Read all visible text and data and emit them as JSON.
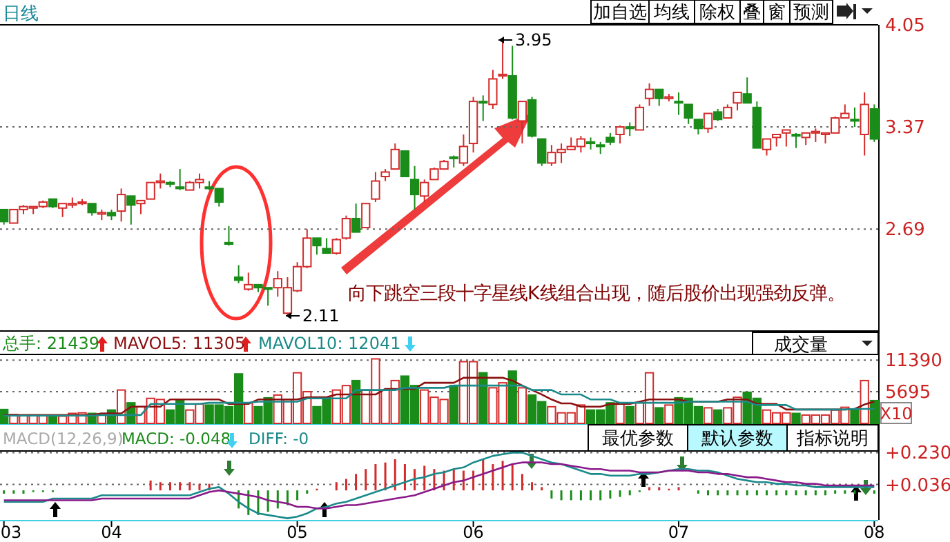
{
  "chart_data": [
    {
      "type": "candlestick",
      "ohlc": [
        [
          2.82,
          2.82,
          2.72,
          2.74
        ],
        [
          2.73,
          2.82,
          2.73,
          2.82
        ],
        [
          2.82,
          2.85,
          2.79,
          2.84
        ],
        [
          2.83,
          2.84,
          2.79,
          2.84
        ],
        [
          2.84,
          2.88,
          2.83,
          2.87
        ],
        [
          2.89,
          2.89,
          2.83,
          2.84
        ],
        [
          2.83,
          2.86,
          2.77,
          2.86
        ],
        [
          2.85,
          2.9,
          2.83,
          2.86
        ],
        [
          2.86,
          2.89,
          2.85,
          2.87
        ],
        [
          2.86,
          2.86,
          2.78,
          2.8
        ],
        [
          2.79,
          2.82,
          2.75,
          2.8
        ],
        [
          2.8,
          2.82,
          2.75,
          2.78
        ],
        [
          2.81,
          2.96,
          2.74,
          2.92
        ],
        [
          2.91,
          2.91,
          2.72,
          2.85
        ],
        [
          2.86,
          2.88,
          2.79,
          2.88
        ],
        [
          2.89,
          3.0,
          2.89,
          3.0
        ],
        [
          3.0,
          3.06,
          2.96,
          3.01
        ],
        [
          3.0,
          3.01,
          2.97,
          2.99
        ],
        [
          2.97,
          3.09,
          2.95,
          2.96
        ],
        [
          2.95,
          3.01,
          2.95,
          3.0
        ],
        [
          3.0,
          3.06,
          2.96,
          3.02
        ],
        [
          2.97,
          3.01,
          2.95,
          2.96
        ],
        [
          2.96,
          2.96,
          2.84,
          2.87
        ],
        [
          2.6,
          2.71,
          2.58,
          2.59
        ],
        [
          2.37,
          2.45,
          2.33,
          2.35
        ],
        [
          2.29,
          2.4,
          2.28,
          2.32
        ],
        [
          2.32,
          2.32,
          2.27,
          2.3
        ],
        [
          2.3,
          2.3,
          2.18,
          2.29
        ],
        [
          2.3,
          2.41,
          2.24,
          2.36
        ],
        [
          2.13,
          2.37,
          2.11,
          2.3
        ],
        [
          2.28,
          2.47,
          2.27,
          2.44
        ],
        [
          2.44,
          2.69,
          2.43,
          2.63
        ],
        [
          2.63,
          2.63,
          2.52,
          2.58
        ],
        [
          2.56,
          2.63,
          2.53,
          2.53
        ],
        [
          2.53,
          2.63,
          2.52,
          2.62
        ],
        [
          2.63,
          2.78,
          2.62,
          2.76
        ],
        [
          2.76,
          2.86,
          2.67,
          2.67
        ],
        [
          2.7,
          2.86,
          2.7,
          2.86
        ],
        [
          2.89,
          3.07,
          2.87,
          3.01
        ],
        [
          3.04,
          3.09,
          3.01,
          3.07
        ],
        [
          3.09,
          3.26,
          3.09,
          3.22
        ],
        [
          3.21,
          3.21,
          3.04,
          3.04
        ],
        [
          3.02,
          3.11,
          2.82,
          2.92
        ],
        [
          2.91,
          3.02,
          2.87,
          3.0
        ],
        [
          3.02,
          3.1,
          3.02,
          3.09
        ],
        [
          3.09,
          3.15,
          3.09,
          3.14
        ],
        [
          3.17,
          3.18,
          3.1,
          3.16
        ],
        [
          3.13,
          3.32,
          3.11,
          3.24
        ],
        [
          3.26,
          3.57,
          3.2,
          3.54
        ],
        [
          3.54,
          3.58,
          3.41,
          3.53
        ],
        [
          3.52,
          3.75,
          3.49,
          3.69
        ],
        [
          3.71,
          3.95,
          3.69,
          3.72
        ],
        [
          3.71,
          3.91,
          3.42,
          3.43
        ],
        [
          3.41,
          3.54,
          3.26,
          3.54
        ],
        [
          3.55,
          3.57,
          3.3,
          3.31
        ],
        [
          3.29,
          3.29,
          3.11,
          3.13
        ],
        [
          3.13,
          3.25,
          3.11,
          3.2
        ],
        [
          3.2,
          3.26,
          3.13,
          3.22
        ],
        [
          3.22,
          3.3,
          3.22,
          3.24
        ],
        [
          3.24,
          3.31,
          3.2,
          3.29
        ],
        [
          3.27,
          3.3,
          3.22,
          3.26
        ],
        [
          3.25,
          3.27,
          3.19,
          3.24
        ],
        [
          3.3,
          3.33,
          3.25,
          3.27
        ],
        [
          3.32,
          3.38,
          3.26,
          3.37
        ],
        [
          3.37,
          3.4,
          3.31,
          3.36
        ],
        [
          3.35,
          3.52,
          3.35,
          3.5
        ],
        [
          3.56,
          3.66,
          3.51,
          3.62
        ],
        [
          3.62,
          3.62,
          3.51,
          3.56
        ],
        [
          3.56,
          3.59,
          3.54,
          3.57
        ],
        [
          3.54,
          3.6,
          3.45,
          3.53
        ],
        [
          3.52,
          3.52,
          3.39,
          3.43
        ],
        [
          3.42,
          3.42,
          3.32,
          3.36
        ],
        [
          3.36,
          3.46,
          3.33,
          3.46
        ],
        [
          3.47,
          3.49,
          3.41,
          3.42
        ],
        [
          3.43,
          3.52,
          3.43,
          3.5
        ],
        [
          3.53,
          3.6,
          3.48,
          3.6
        ],
        [
          3.59,
          3.7,
          3.53,
          3.53
        ],
        [
          3.5,
          3.54,
          3.23,
          3.23
        ],
        [
          3.22,
          3.29,
          3.18,
          3.29
        ],
        [
          3.3,
          3.32,
          3.24,
          3.32
        ],
        [
          3.33,
          3.35,
          3.24,
          3.35
        ],
        [
          3.32,
          3.33,
          3.23,
          3.31
        ],
        [
          3.3,
          3.33,
          3.25,
          3.33
        ],
        [
          3.33,
          3.36,
          3.27,
          3.34
        ],
        [
          3.32,
          3.33,
          3.26,
          3.33
        ],
        [
          3.33,
          3.44,
          3.33,
          3.43
        ],
        [
          3.43,
          3.52,
          3.43,
          3.46
        ],
        [
          3.42,
          3.5,
          3.37,
          3.41
        ],
        [
          3.32,
          3.6,
          3.18,
          3.52
        ],
        [
          3.49,
          3.52,
          3.27,
          3.29
        ]
      ],
      "colors": [
        "#1a8c1a",
        "#d42a2a",
        "#d42a2a",
        "#d42a2a",
        "#d42a2a",
        "#1a8c1a",
        "#d42a2a",
        "#d42a2a",
        "#d42a2a",
        "#1a8c1a",
        "#d42a2a",
        "#1a8c1a",
        "#d42a2a",
        "#1a8c1a",
        "#d42a2a",
        "#d42a2a",
        "#d42a2a",
        "#1a8c1a",
        "#1a8c1a",
        "#d42a2a",
        "#d42a2a",
        "#1a8c1a",
        "#1a8c1a",
        "#1a8c1a",
        "#1a8c1a",
        "#d42a2a",
        "#1a8c1a",
        "#1a8c1a",
        "#d42a2a",
        "#d42a2a",
        "#d42a2a",
        "#d42a2a",
        "#1a8c1a",
        "#1a8c1a",
        "#d42a2a",
        "#d42a2a",
        "#1a8c1a",
        "#d42a2a",
        "#d42a2a",
        "#d42a2a",
        "#d42a2a",
        "#1a8c1a",
        "#1a8c1a",
        "#d42a2a",
        "#d42a2a",
        "#d42a2a",
        "#1a8c1a",
        "#d42a2a",
        "#d42a2a",
        "#1a8c1a",
        "#d42a2a",
        "#d42a2a",
        "#1a8c1a",
        "#d42a2a",
        "#1a8c1a",
        "#1a8c1a",
        "#d42a2a",
        "#d42a2a",
        "#d42a2a",
        "#d42a2a",
        "#1a8c1a",
        "#1a8c1a",
        "#1a8c1a",
        "#d42a2a",
        "#1a8c1a",
        "#d42a2a",
        "#d42a2a",
        "#1a8c1a",
        "#d42a2a",
        "#1a8c1a",
        "#1a8c1a",
        "#1a8c1a",
        "#d42a2a",
        "#1a8c1a",
        "#d42a2a",
        "#d42a2a",
        "#1a8c1a",
        "#1a8c1a",
        "#d42a2a",
        "#d42a2a",
        "#d42a2a",
        "#1a8c1a",
        "#d42a2a",
        "#d42a2a",
        "#d42a2a",
        "#d42a2a",
        "#d42a2a",
        "#1a8c1a",
        "#d42a2a",
        "#1a8c1a"
      ],
      "ylim": [
        2.03,
        4.05
      ],
      "yticks": [
        4.05,
        3.37,
        2.69
      ],
      "grid": "y",
      "tick_labels": "y",
      "annotations": [
        "日线",
        "加自选",
        "均线",
        "除权",
        "叠",
        "窗",
        "预测",
        "向下跳空三段十字星线K线组合出现，随后股价出现强劲反弹。",
        "3.95",
        "2.11"
      ]
    },
    {
      "type": "bar",
      "series": [
        {
          "values": [
            2500,
            1600,
            1400,
            1500,
            1400,
            1400,
            1300,
            1800,
            1900,
            1800,
            1600,
            2400,
            6000,
            3700,
            3000,
            4500,
            4300,
            2400,
            4300,
            2400,
            3500,
            3300,
            3300,
            3000,
            8900,
            3700,
            3000,
            4600,
            5100,
            4300,
            9100,
            5700,
            3000,
            4600,
            6000,
            6800,
            7700,
            6000,
            11600,
            6000,
            7700,
            8500,
            6800,
            6000,
            4700,
            4300,
            6800,
            11100,
            11100,
            9100,
            6400,
            7300,
            9400,
            6400,
            5100,
            3900,
            3000,
            1900,
            1900,
            3300,
            2400,
            2400,
            3700,
            3700,
            3000,
            3700,
            9100,
            2800,
            3300,
            4600,
            4500,
            3000,
            2800,
            2400,
            2800,
            4700,
            5600,
            4500,
            2400,
            1900,
            1900,
            1800,
            1500,
            1500,
            1500,
            2400,
            2900,
            2400,
            7700,
            4100
          ],
          "colors": [
            "#1a8c1a",
            "#d42a2a",
            "#d42a2a",
            "#d42a2a",
            "#d42a2a",
            "#1a8c1a",
            "#d42a2a",
            "#d42a2a",
            "#d42a2a",
            "#1a8c1a",
            "#d42a2a",
            "#1a8c1a",
            "#d42a2a",
            "#1a8c1a",
            "#d42a2a",
            "#d42a2a",
            "#d42a2a",
            "#1a8c1a",
            "#1a8c1a",
            "#d42a2a",
            "#d42a2a",
            "#1a8c1a",
            "#1a8c1a",
            "#1a8c1a",
            "#1a8c1a",
            "#d42a2a",
            "#1a8c1a",
            "#1a8c1a",
            "#d42a2a",
            "#d42a2a",
            "#d42a2a",
            "#d42a2a",
            "#1a8c1a",
            "#1a8c1a",
            "#d42a2a",
            "#d42a2a",
            "#1a8c1a",
            "#d42a2a",
            "#d42a2a",
            "#d42a2a",
            "#d42a2a",
            "#1a8c1a",
            "#1a8c1a",
            "#d42a2a",
            "#d42a2a",
            "#d42a2a",
            "#1a8c1a",
            "#d42a2a",
            "#d42a2a",
            "#1a8c1a",
            "#d42a2a",
            "#d42a2a",
            "#1a8c1a",
            "#d42a2a",
            "#1a8c1a",
            "#1a8c1a",
            "#d42a2a",
            "#d42a2a",
            "#d42a2a",
            "#d42a2a",
            "#1a8c1a",
            "#1a8c1a",
            "#1a8c1a",
            "#d42a2a",
            "#1a8c1a",
            "#d42a2a",
            "#d42a2a",
            "#1a8c1a",
            "#d42a2a",
            "#1a8c1a",
            "#1a8c1a",
            "#1a8c1a",
            "#d42a2a",
            "#1a8c1a",
            "#d42a2a",
            "#d42a2a",
            "#1a8c1a",
            "#1a8c1a",
            "#d42a2a",
            "#d42a2a",
            "#d42a2a",
            "#1a8c1a",
            "#d42a2a",
            "#d42a2a",
            "#d42a2a",
            "#d42a2a",
            "#d42a2a",
            "#1a8c1a",
            "#d42a2a",
            "#1a8c1a"
          ]
        },
        {
          "type": "line",
          "color": "#8b1010",
          "values": [
            1500,
            1500,
            1500,
            1500,
            1500,
            1500,
            1500,
            1500,
            1500,
            1500,
            1800,
            1800,
            1800,
            3000,
            3000,
            3000,
            3000,
            4300,
            4300,
            4300,
            4300,
            4300,
            4300,
            3500,
            3500,
            3500,
            4300,
            4300,
            4300,
            4300,
            4300,
            4700,
            4700,
            4700,
            5200,
            5200,
            5200,
            5200,
            5200,
            6200,
            6200,
            6200,
            6200,
            7300,
            7300,
            7300,
            7300,
            8200,
            8200,
            8200,
            8200,
            8200,
            7700,
            6800,
            6000,
            5200,
            4300,
            3600,
            3600,
            3000,
            3000,
            3000,
            3500,
            3500,
            3500,
            3900,
            4300,
            4300,
            4300,
            4300,
            3900,
            3900,
            3900,
            3900,
            4300,
            4300,
            4300,
            3500,
            3500,
            3500,
            2500,
            2500,
            2500,
            2500,
            2500,
            2500,
            2500,
            2600,
            3400,
            3900
          ]
        },
        {
          "type": "line",
          "color": "#1a8a8a",
          "values": [
            1400,
            1400,
            1400,
            1400,
            1400,
            1400,
            1400,
            1400,
            1400,
            1400,
            1500,
            1500,
            1500,
            1500,
            1500,
            3500,
            3500,
            3500,
            3500,
            3500,
            3500,
            3700,
            3700,
            3700,
            3700,
            3700,
            3900,
            3900,
            3900,
            3900,
            3900,
            4500,
            4500,
            4500,
            4500,
            4500,
            6000,
            6000,
            6000,
            6000,
            6000,
            6400,
            6400,
            6400,
            6400,
            6400,
            6800,
            6800,
            6800,
            6800,
            6800,
            6800,
            6800,
            6800,
            6000,
            6000,
            6000,
            5200,
            5200,
            5200,
            4300,
            4300,
            4300,
            3700,
            3700,
            3700,
            3700,
            3700,
            3700,
            3700,
            3900,
            3900,
            3900,
            3900,
            3900,
            3900,
            3900,
            3300,
            3300,
            3300,
            3300,
            2500,
            2500,
            2500,
            2500,
            2500,
            2500,
            2600,
            2600,
            2600
          ]
        }
      ],
      "ylim": [
        0,
        12400
      ],
      "yticks": [
        11390,
        5695
      ],
      "grid": "y",
      "tick_labels": "y",
      "annotations": [
        "总手: 21439",
        "MAVOL5: 11305",
        "MAVOL10: 12041",
        "成交量",
        "X10"
      ]
    },
    {
      "type": "bar",
      "categories": [
        "03",
        null,
        null,
        null,
        null,
        null,
        null,
        null,
        null,
        null,
        null,
        "04",
        null,
        null,
        null,
        null,
        null,
        null,
        null,
        null,
        null,
        null,
        null,
        null,
        null,
        null,
        null,
        null,
        null,
        null,
        "05",
        null,
        null,
        null,
        null,
        null,
        null,
        null,
        null,
        null,
        null,
        null,
        null,
        null,
        null,
        null,
        null,
        null,
        "06",
        null,
        null,
        null,
        null,
        null,
        null,
        null,
        null,
        null,
        null,
        null,
        null,
        null,
        null,
        null,
        null,
        null,
        null,
        null,
        null,
        "07",
        null,
        null,
        null,
        null,
        null,
        null,
        null,
        null,
        null,
        null,
        null,
        null,
        null,
        null,
        null,
        null,
        null,
        null,
        null,
        "08"
      ],
      "series": [
        {
          "color": "#d42a2a",
          "values": [
            null,
            null,
            null,
            null,
            null,
            null,
            null,
            null,
            null,
            null,
            null,
            null,
            null,
            null,
            null,
            0.06,
            0.05,
            0.05,
            0.05,
            0.05,
            0.04,
            0.04,
            null,
            null,
            null,
            null,
            null,
            null,
            null,
            null,
            null,
            null,
            0.01,
            null,
            0.05,
            0.07,
            0.1,
            0.13,
            0.16,
            0.17,
            0.19,
            0.16,
            0.13,
            0.15,
            0.13,
            0.12,
            0.13,
            0.12,
            0.12,
            0.19,
            0.16,
            0.18,
            0.16,
            0.1,
            0.05,
            0.02,
            null,
            null,
            null,
            null,
            null,
            null,
            null,
            null,
            null,
            null,
            0.02,
            0.02,
            0.01,
            0.02,
            null,
            null,
            null,
            null,
            null,
            null,
            null,
            null,
            null,
            null,
            null,
            null,
            null,
            null,
            null,
            null,
            null,
            null,
            null,
            null
          ]
        },
        {
          "color": "#1a8c1a",
          "values": [
            -0.02,
            -0.02,
            -0.02,
            -0.01,
            -0.01,
            -0.01,
            null,
            null,
            null,
            null,
            null,
            null,
            null,
            null,
            null,
            null,
            null,
            null,
            null,
            null,
            null,
            null,
            null,
            null,
            -0.11,
            -0.15,
            -0.15,
            -0.13,
            -0.11,
            -0.09,
            -0.06,
            -0.02,
            null,
            null,
            null,
            null,
            null,
            null,
            null,
            null,
            null,
            null,
            null,
            null,
            null,
            null,
            null,
            null,
            null,
            null,
            null,
            null,
            null,
            null,
            null,
            null,
            -0.05,
            -0.06,
            -0.06,
            -0.06,
            -0.06,
            -0.06,
            -0.05,
            -0.04,
            -0.03,
            -0.01,
            null,
            null,
            null,
            null,
            null,
            -0.02,
            -0.03,
            -0.03,
            -0.03,
            -0.03,
            -0.03,
            -0.03,
            -0.03,
            -0.03,
            -0.03,
            -0.03,
            -0.03,
            -0.03,
            -0.03,
            -0.02,
            -0.02,
            -0.02,
            -0.01,
            -0.02
          ]
        },
        {
          "type": "line",
          "color": "#1a8a8a",
          "values": [
            -0.07,
            -0.07,
            -0.07,
            -0.07,
            -0.07,
            -0.05,
            -0.05,
            -0.05,
            -0.05,
            -0.05,
            -0.03,
            -0.03,
            -0.03,
            -0.03,
            -0.03,
            -0.03,
            -0.03,
            -0.03,
            -0.03,
            -0.03,
            -0.01,
            0.01,
            0.02,
            -0.02,
            -0.07,
            -0.11,
            -0.14,
            -0.15,
            -0.16,
            -0.17,
            -0.16,
            -0.14,
            -0.11,
            -0.1,
            -0.08,
            -0.07,
            -0.05,
            -0.03,
            -0.01,
            0.01,
            0.03,
            0.05,
            0.07,
            0.08,
            0.1,
            0.11,
            0.13,
            0.14,
            0.17,
            0.19,
            0.21,
            0.22,
            0.23,
            0.23,
            0.21,
            0.19,
            0.17,
            0.16,
            0.14,
            0.12,
            0.1,
            0.1,
            0.09,
            0.09,
            0.09,
            0.1,
            0.1,
            0.11,
            0.12,
            0.13,
            0.13,
            0.12,
            0.12,
            0.11,
            0.09,
            0.07,
            0.06,
            0.05,
            0.05,
            0.04,
            0.04,
            0.03,
            0.03,
            0.02,
            0.02,
            0.02,
            0.02,
            0.02,
            0.02,
            0.02
          ]
        },
        {
          "type": "line",
          "color": "#8a1a8a",
          "values": [
            -0.06,
            -0.06,
            -0.06,
            -0.06,
            -0.06,
            -0.06,
            -0.06,
            -0.06,
            -0.06,
            -0.06,
            -0.05,
            -0.05,
            -0.05,
            -0.05,
            -0.05,
            -0.05,
            -0.05,
            -0.05,
            -0.05,
            -0.05,
            -0.03,
            -0.01,
            0.0,
            -0.01,
            -0.02,
            -0.03,
            -0.04,
            -0.06,
            -0.07,
            -0.08,
            -0.1,
            -0.1,
            -0.11,
            -0.11,
            -0.1,
            -0.09,
            -0.09,
            -0.08,
            -0.07,
            -0.06,
            -0.05,
            -0.04,
            -0.03,
            -0.01,
            0.01,
            0.03,
            0.05,
            0.06,
            0.08,
            0.1,
            0.12,
            0.14,
            0.16,
            0.17,
            0.17,
            0.17,
            0.16,
            0.16,
            0.15,
            0.14,
            0.13,
            0.13,
            0.12,
            0.12,
            0.12,
            0.11,
            0.11,
            0.11,
            0.12,
            0.12,
            0.12,
            0.11,
            0.11,
            0.1,
            0.1,
            0.09,
            0.08,
            0.08,
            0.07,
            0.06,
            0.05,
            0.05,
            0.04,
            0.04,
            0.03,
            0.03,
            0.03,
            0.03,
            0.03,
            0.03
          ]
        }
      ],
      "ylim": [
        -0.18,
        0.24
      ],
      "yticks": [
        {
          "value": 0.23,
          "label": "+0.230"
        },
        {
          "value": 0.036,
          "label": "+0.036"
        }
      ],
      "grid": "y",
      "annotations": [
        "MACD(12,26,9)",
        "MACD: -0.048",
        "DIFF: -0",
        "最优参数",
        "默认参数",
        "指标说明"
      ]
    }
  ]
}
